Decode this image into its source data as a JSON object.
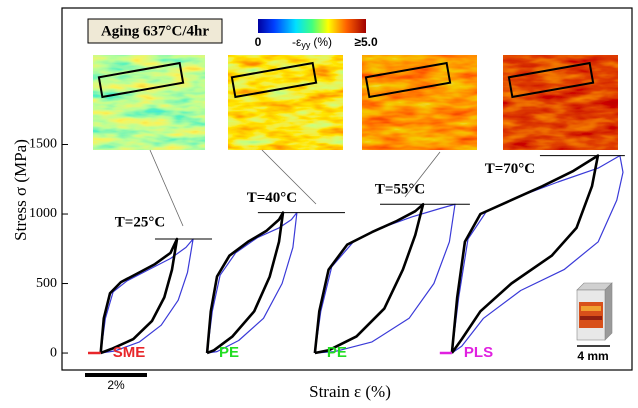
{
  "chart_data": {
    "type": "line",
    "annotation": "Aging 637°C/4hr",
    "colorbar": {
      "min_label": "0",
      "label_main": "-ε",
      "label_sub": "yy",
      "label_unit": "(%)",
      "max_label": "≥5.0"
    },
    "ylabel": "Stress σ (MPa)",
    "xlabel": "Strain ε (%)",
    "ylim": [
      -122,
      2482
    ],
    "yticks": [
      0,
      500,
      1000,
      1500
    ],
    "xlim": [
      0,
      18.39
    ],
    "scale_bar": {
      "value": 2,
      "label": "2%"
    },
    "specimen_label": "4 mm",
    "tests": [
      {
        "label": "T=25°C",
        "mode": "SME",
        "mode_color": "#e8262a",
        "residual": {
          "color": "#e8262a",
          "x": [
            0.84,
            1.25
          ],
          "y": [
            0,
            0
          ]
        },
        "peak_line": {
          "y": 820,
          "x": [
            3.0,
            4.84
          ]
        },
        "curves": [
          {
            "color": "#3a3ad8",
            "x": [
              1.25,
              1.4,
              1.65,
              2.1,
              2.8,
              3.5,
              4.0,
              4.23,
              4.05,
              3.75,
              3.2,
              2.5,
              1.7,
              1.25
            ],
            "y": [
              0,
              250,
              440,
              520,
              600,
              680,
              760,
              820,
              580,
              380,
              200,
              80,
              15,
              0
            ]
          },
          {
            "color": "#000000",
            "x": [
              1.25,
              1.35,
              1.55,
              1.9,
              2.5,
              3.0,
              3.5,
              3.71,
              3.55,
              3.3,
              2.9,
              2.3,
              1.6,
              1.25
            ],
            "y": [
              0,
              250,
              430,
              510,
              580,
              640,
              720,
              820,
              600,
              400,
              230,
              100,
              30,
              0
            ]
          }
        ]
      },
      {
        "label": "T=40°C",
        "mode": "PE",
        "mode_color": "#22dd22",
        "peak_line": {
          "y": 1010,
          "x": [
            6.32,
            9.13
          ]
        },
        "curves": [
          {
            "color": "#3a3ad8",
            "x": [
              4.68,
              4.85,
              5.1,
              5.6,
              6.3,
              7.0,
              7.4,
              7.58,
              7.45,
              7.1,
              6.5,
              5.7,
              5.0,
              4.68
            ],
            "y": [
              0,
              300,
              560,
              720,
              830,
              900,
              960,
              1010,
              760,
              500,
              250,
              90,
              10,
              0
            ]
          },
          {
            "color": "#000000",
            "x": [
              4.68,
              4.8,
              5.0,
              5.4,
              6.0,
              6.6,
              7.0,
              7.13,
              7.0,
              6.7,
              6.2,
              5.5,
              4.9,
              4.68
            ],
            "y": [
              0,
              300,
              550,
              700,
              800,
              880,
              960,
              1010,
              800,
              550,
              300,
              120,
              20,
              0
            ]
          }
        ]
      },
      {
        "label": "T=55°C",
        "mode": "PE",
        "mode_color": "#22dd22",
        "peak_line": {
          "y": 1070,
          "x": [
            10.26,
            13.16
          ]
        },
        "curves": [
          {
            "color": "#3a3ad8",
            "x": [
              8.16,
              8.35,
              8.7,
              9.4,
              10.3,
              11.3,
              12.2,
              12.68,
              12.5,
              12.0,
              11.2,
              10.0,
              8.8,
              8.16
            ],
            "y": [
              0,
              300,
              620,
              800,
              900,
              980,
              1040,
              1070,
              800,
              500,
              250,
              80,
              10,
              0
            ]
          },
          {
            "color": "#000000",
            "x": [
              8.16,
              8.3,
              8.6,
              9.2,
              10.0,
              10.8,
              11.4,
              11.65,
              11.4,
              11.0,
              10.4,
              9.5,
              8.6,
              8.16
            ],
            "y": [
              0,
              300,
              600,
              780,
              870,
              950,
              1020,
              1070,
              850,
              600,
              320,
              120,
              20,
              0
            ]
          }
        ]
      },
      {
        "label": "T=70°C",
        "mode": "PLS",
        "mode_color": "#e020e0",
        "residual": {
          "color": "#e020e0",
          "x": [
            12.19,
            12.58
          ],
          "y": [
            0,
            0
          ]
        },
        "peak_line": {
          "y": 1420,
          "x": [
            15.42,
            18.16
          ]
        },
        "curves": [
          {
            "color": "#3a3ad8",
            "x": [
              12.58,
              12.8,
              13.1,
              13.7,
              14.8,
              16.0,
              17.3,
              18.0,
              18.1,
              17.9,
              17.3,
              16.2,
              14.8,
              13.6,
              12.9,
              12.58
            ],
            "y": [
              0,
              400,
              820,
              1020,
              1130,
              1230,
              1330,
              1420,
              1300,
              1100,
              800,
              600,
              450,
              250,
              50,
              0
            ]
          },
          {
            "color": "#000000",
            "x": [
              12.58,
              12.75,
              13.0,
              13.5,
              14.5,
              15.5,
              16.5,
              17.29,
              17.1,
              16.6,
              15.8,
              14.5,
              13.5,
              12.9,
              12.58
            ],
            "y": [
              0,
              400,
              800,
              1000,
              1100,
              1200,
              1310,
              1420,
              1200,
              900,
              700,
              500,
              300,
              100,
              0
            ]
          }
        ]
      }
    ]
  }
}
